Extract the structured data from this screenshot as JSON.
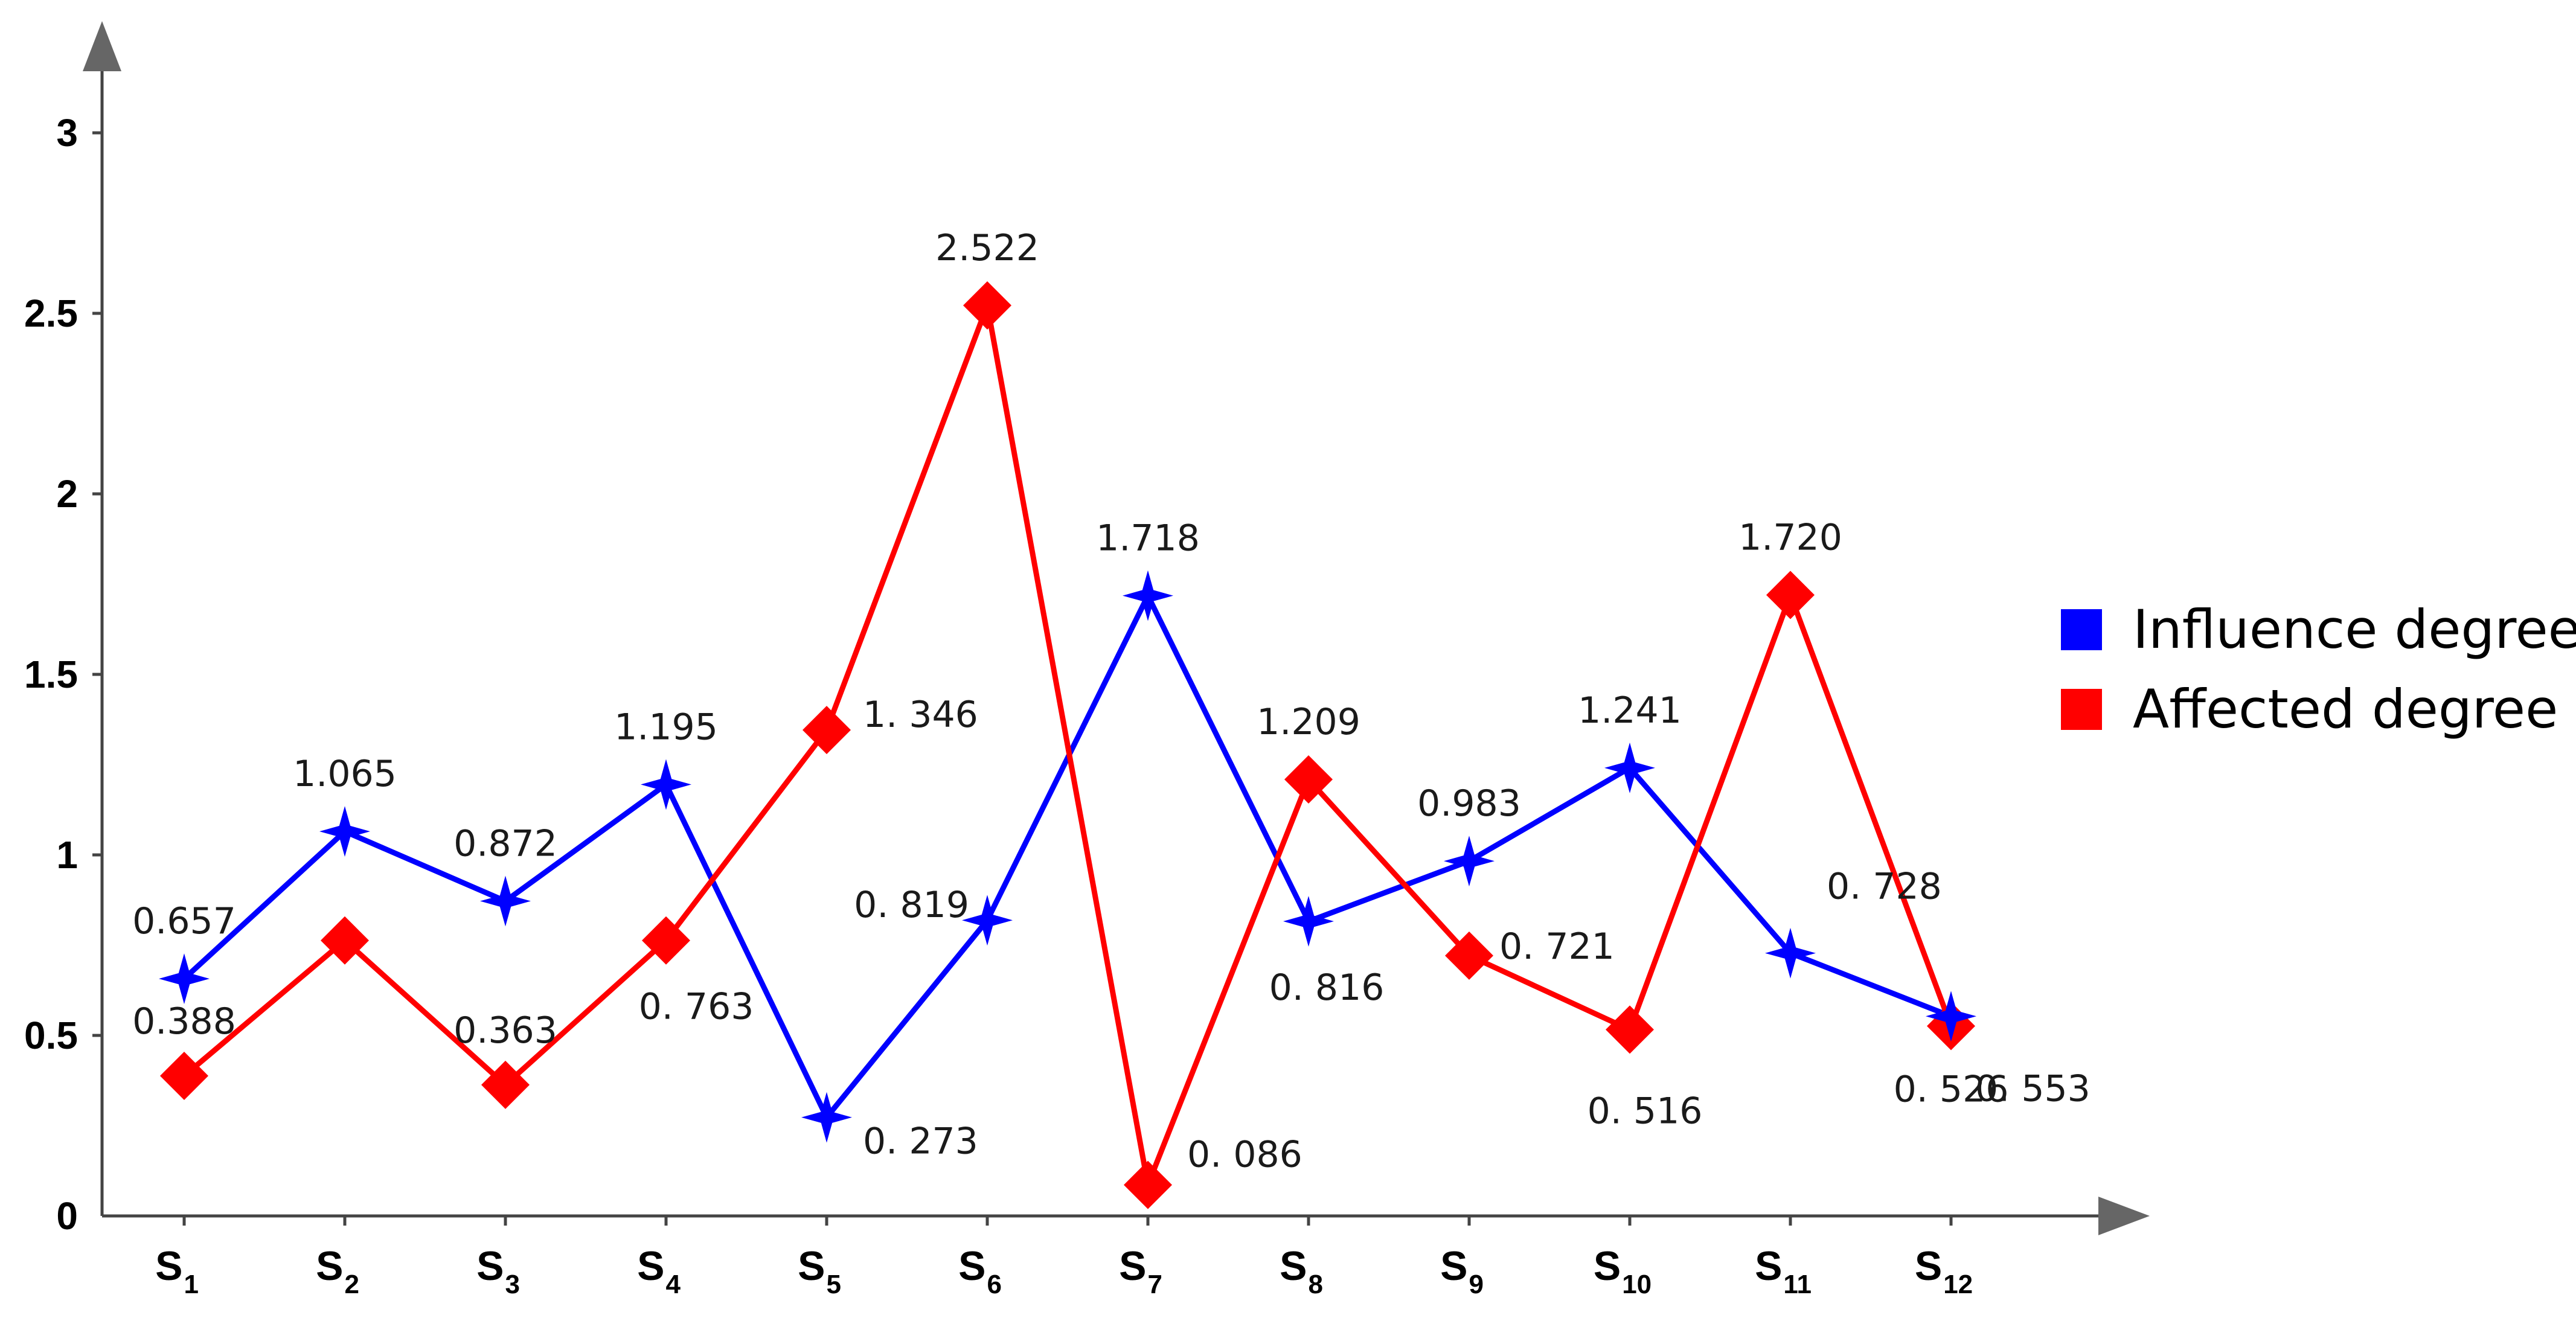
{
  "chart_data": {
    "type": "line",
    "categories": [
      "S1",
      "S2",
      "S3",
      "S4",
      "S5",
      "S6",
      "S7",
      "S8",
      "S9",
      "S10",
      "S11",
      "S12"
    ],
    "category_labels": [
      {
        "main": "S",
        "sub": "1"
      },
      {
        "main": "S",
        "sub": "2"
      },
      {
        "main": "S",
        "sub": "3"
      },
      {
        "main": "S",
        "sub": "4"
      },
      {
        "main": "S",
        "sub": "5"
      },
      {
        "main": "S",
        "sub": "6"
      },
      {
        "main": "S",
        "sub": "7"
      },
      {
        "main": "S",
        "sub": "8"
      },
      {
        "main": "S",
        "sub": "9"
      },
      {
        "main": "S",
        "sub": "10"
      },
      {
        "main": "S",
        "sub": "11"
      },
      {
        "main": "S",
        "sub": "12"
      }
    ],
    "ylim": [
      0,
      3
    ],
    "yticks": [
      0,
      0.5,
      1,
      1.5,
      2,
      2.5,
      3
    ],
    "ytick_labels": [
      "0",
      "0.5",
      "1",
      "1.5",
      "2",
      "2.5",
      "3"
    ],
    "grid": false,
    "legend_position": "right",
    "series": [
      {
        "name": "Influence degree",
        "color": "#0000ff",
        "marker": "star",
        "values": [
          0.657,
          1.065,
          0.872,
          1.195,
          0.273,
          0.819,
          1.718,
          0.816,
          0.983,
          1.241,
          0.728,
          0.553
        ],
        "labels": [
          "0.657",
          "1.065",
          "0.872",
          "1.195",
          "0. 273",
          "0. 819",
          "1.718",
          "0. 816",
          "0.983",
          "1.241",
          "0. 728",
          "0. 553"
        ]
      },
      {
        "name": "Affected degree",
        "color": "#ff0000",
        "marker": "diamond",
        "values": [
          0.388,
          0.763,
          0.363,
          0.763,
          1.346,
          2.522,
          0.086,
          1.209,
          0.721,
          0.516,
          1.72,
          0.526
        ],
        "labels": [
          "0.388",
          "",
          "0.363",
          "0. 763",
          "1. 346",
          "2.522",
          "0. 086",
          "1.209",
          "0. 721",
          "0. 516",
          "1.720",
          "0. 526"
        ]
      }
    ]
  }
}
